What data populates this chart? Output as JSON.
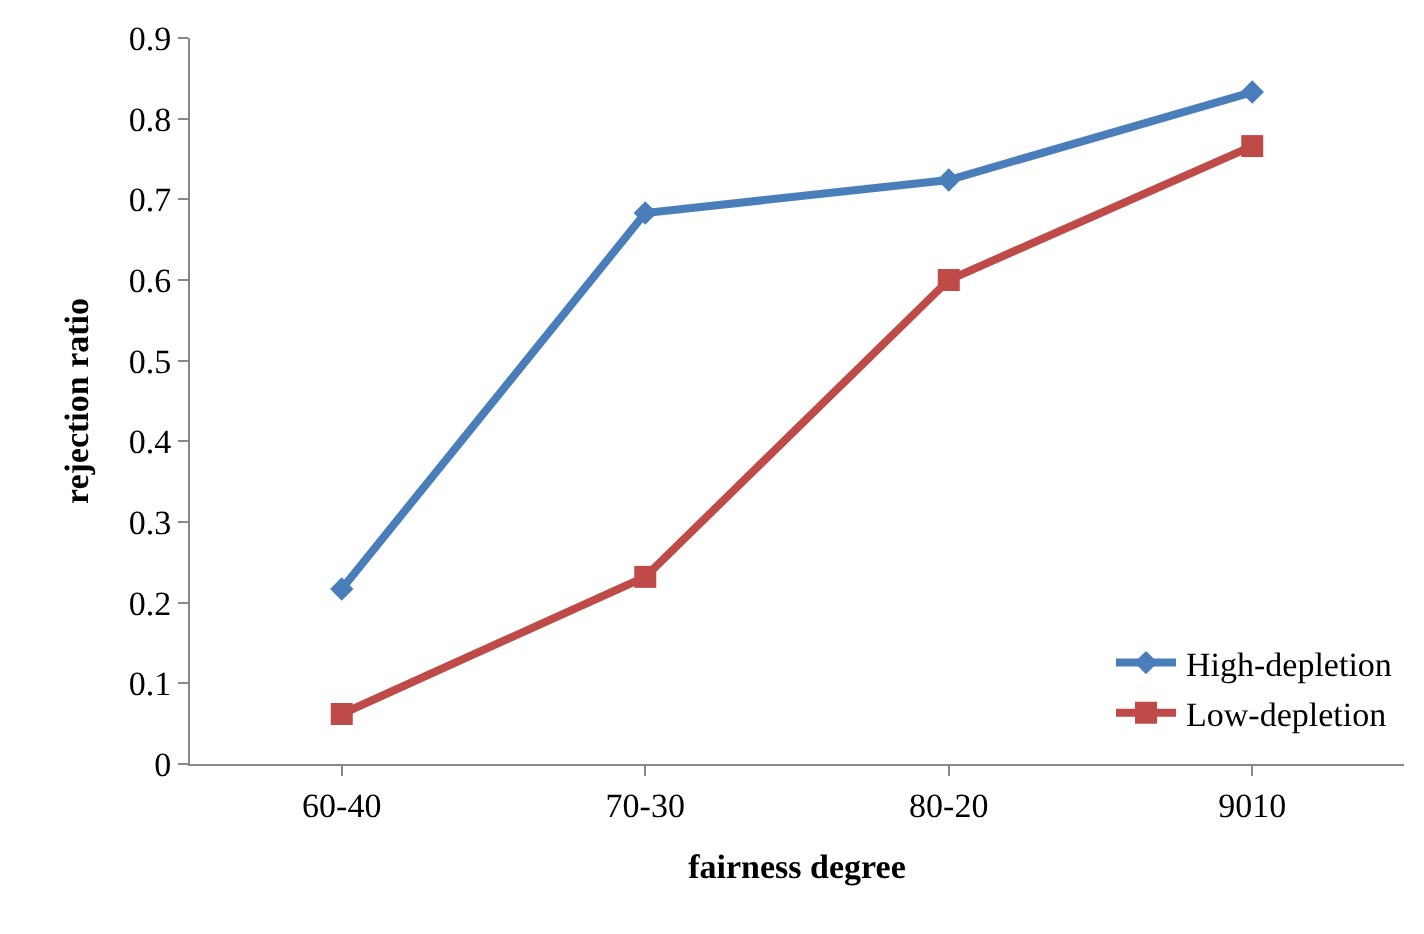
{
  "chart_data": {
    "type": "line",
    "xlabel": "fairness degree",
    "ylabel": "rejection ratio",
    "categories": [
      "60-40",
      "70-30",
      "80-20",
      "9010"
    ],
    "series": [
      {
        "name": "High-depletion",
        "color": "#4a7ebb",
        "marker": "diamond",
        "values": [
          0.217,
          0.683,
          0.724,
          0.833
        ]
      },
      {
        "name": "Low-depletion",
        "color": "#be4b48",
        "marker": "square",
        "values": [
          0.062,
          0.232,
          0.6,
          0.766
        ]
      }
    ],
    "ylim": [
      0,
      0.9
    ],
    "yticks": [
      0,
      0.1,
      0.2,
      0.3,
      0.4,
      0.5,
      0.6,
      0.7,
      0.8,
      0.9
    ],
    "grid": false,
    "legend": "bottom right",
    "line_style": "solid"
  }
}
